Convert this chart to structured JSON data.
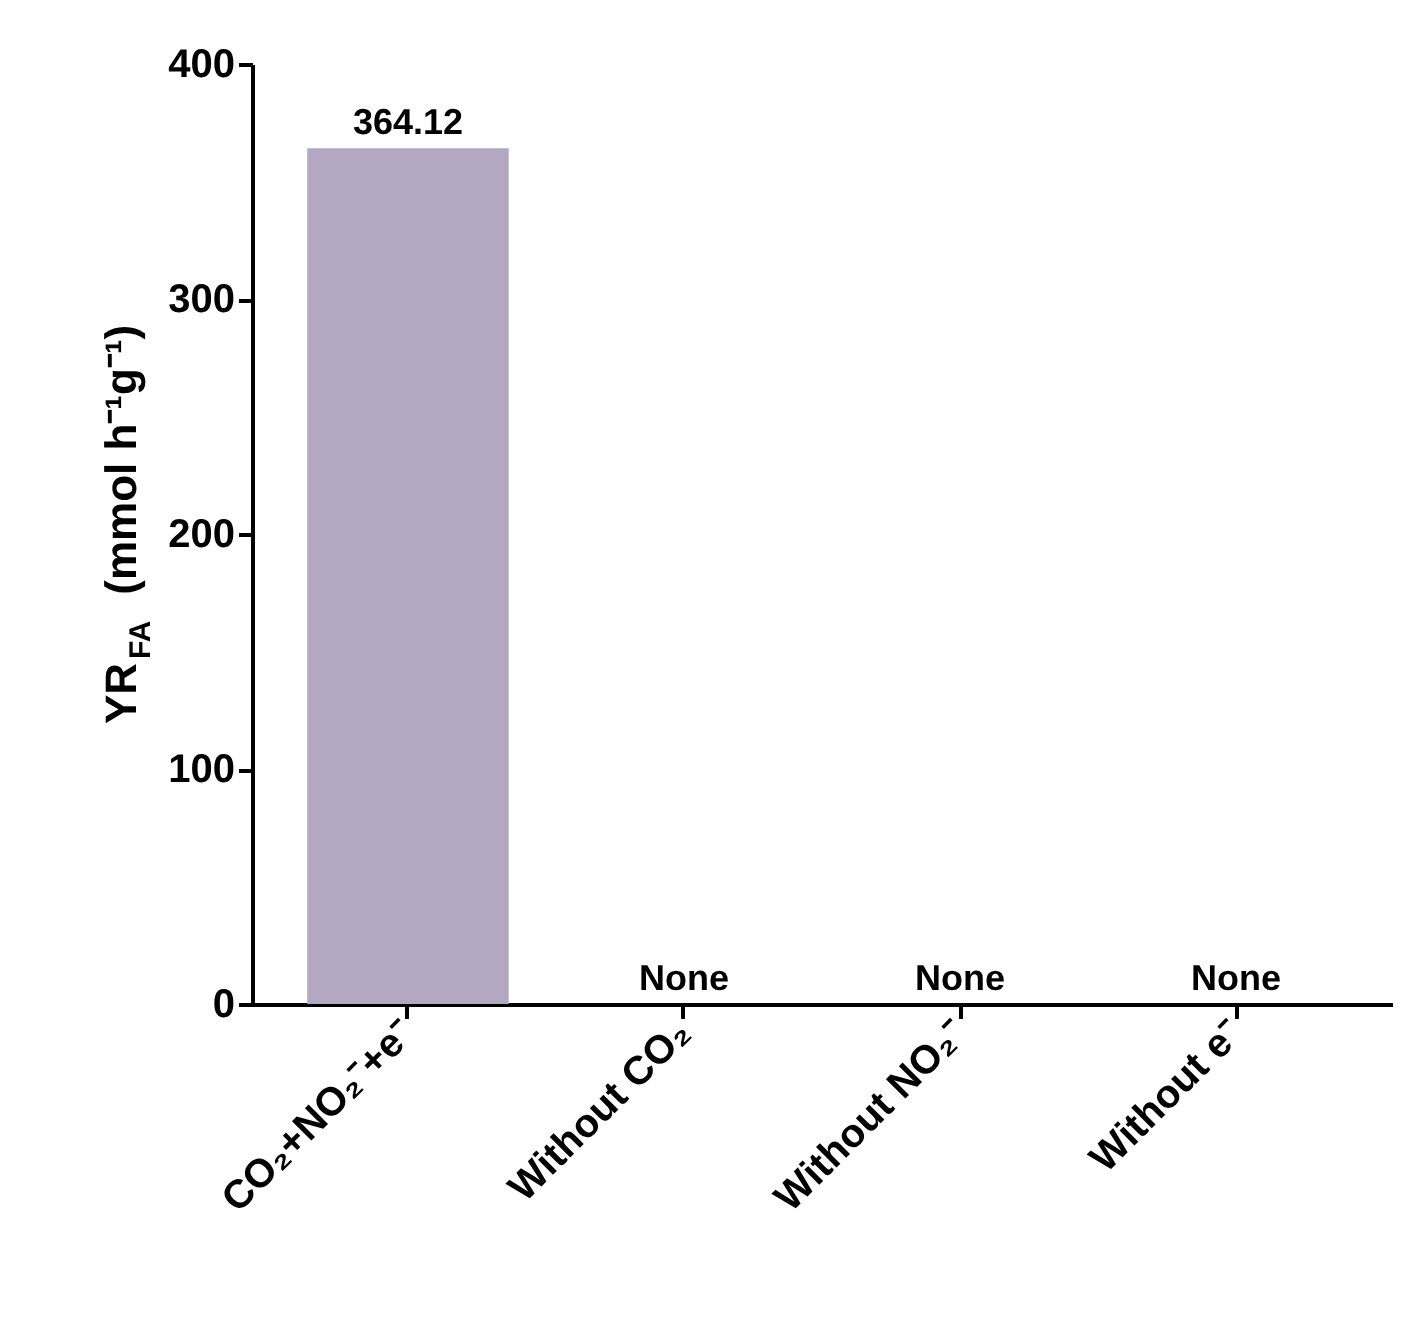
{
  "chart_data": {
    "type": "bar",
    "categories": [
      "CO₂+NO₂⁻+e⁻",
      "Without CO₂",
      "Without NO₂⁻",
      "Without e⁻"
    ],
    "values": [
      364.12,
      null,
      null,
      null
    ],
    "value_labels": [
      "364.12",
      "None",
      "None",
      "None"
    ],
    "color": "#b4a7c1",
    "ylabel": "YR$_{FA}$ (mmol h⁻¹g⁻¹)",
    "ylim": [
      0,
      400
    ],
    "yticks": [
      0,
      100,
      200,
      300,
      400
    ],
    "grid": false
  }
}
